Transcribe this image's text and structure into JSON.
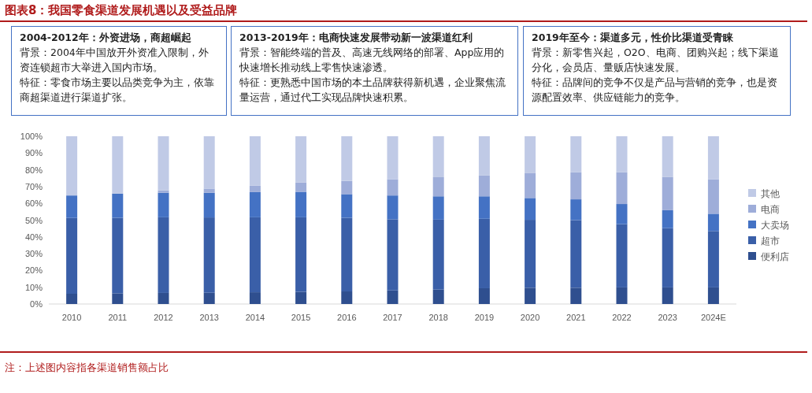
{
  "chart_data": {
    "type": "bar",
    "stacked": true,
    "title": "图表8：我国零食渠道发展机遇以及受益品牌",
    "annotations": [
      "2004-2012年：外资进场，商超崛起",
      "背景：2004年中国放开外资准入限制，外资连锁超市大举进入国内市场。",
      "特征：零食市场主要以品类竞争为主，依靠商超渠道进行渠道扩张。",
      "2013-2019年：电商快速发展带动新一波渠道红利",
      "背景：智能终端的普及、高速无线网络的部署、App应用的快速增长推动线上零售快速渗透。",
      "特征：更熟悉中国市场的本土品牌获得新机遇，企业聚焦流量运营，通过代工实现品牌快速积累。",
      "2019年至今：渠道多元，性价比渠道受青睐",
      "背景：新零售兴起，O2O、电商、团购兴起；线下渠道分化，会员店、量贩店快速发展。",
      "特征：品牌间的竞争不仅是产品与营销的竞争，也是资源配置效率、供应链能力的竞争。",
      "注：上述图内容指各渠道销售额占比"
    ],
    "categories": [
      "2010",
      "2011",
      "2012",
      "2013",
      "2014",
      "2015",
      "2016",
      "2017",
      "2018",
      "2019",
      "2020",
      "2021",
      "2022",
      "2023",
      "2024E"
    ],
    "series": [
      {
        "name": "便利店",
        "color": "#2f4f8f",
        "values": [
          6.1,
          6.4,
          6.6,
          6.7,
          7.0,
          7.3,
          7.5,
          8.1,
          8.6,
          9.4,
          9.7,
          9.7,
          9.9,
          9.9,
          9.9
        ]
      },
      {
        "name": "超市",
        "color": "#3a5fa8",
        "values": [
          45.2,
          45.0,
          45.1,
          44.9,
          44.7,
          44.4,
          43.9,
          42.4,
          41.7,
          41.4,
          40.5,
          40.3,
          37.7,
          35.3,
          33.6
        ]
      },
      {
        "name": "大卖场",
        "color": "#4472c4",
        "values": [
          13.4,
          14.4,
          14.6,
          14.7,
          15.0,
          15.2,
          14.1,
          14.2,
          13.9,
          13.4,
          13.0,
          12.4,
          12.0,
          10.7,
          10.3
        ]
      },
      {
        "name": "电商",
        "color": "#9eadd9",
        "values": [
          0,
          0,
          1.5,
          2.5,
          3.8,
          5.6,
          7.9,
          9.7,
          11.4,
          12.4,
          15.0,
          16.1,
          18.9,
          19.9,
          20.6
        ]
      },
      {
        "name": "其他",
        "color": "#c0cae6",
        "values": [
          35.3,
          34.2,
          32.2,
          31.2,
          29.5,
          27.5,
          26.6,
          25.6,
          24.4,
          23.4,
          21.8,
          21.5,
          21.5,
          24.2,
          25.6
        ]
      }
    ],
    "ylim": [
      0,
      100
    ],
    "yticks": [
      {
        "value": 0,
        "label": "0%"
      },
      {
        "value": 10,
        "label": "10%"
      },
      {
        "value": 20,
        "label": "20%"
      },
      {
        "value": 30,
        "label": "30%"
      },
      {
        "value": 40,
        "label": "40%"
      },
      {
        "value": 50,
        "label": "50%"
      },
      {
        "value": 60,
        "label": "60%"
      },
      {
        "value": 70,
        "label": "70%"
      },
      {
        "value": 80,
        "label": "80%"
      },
      {
        "value": 90,
        "label": "90%"
      },
      {
        "value": 100,
        "label": "100%"
      }
    ],
    "legend": "right"
  }
}
